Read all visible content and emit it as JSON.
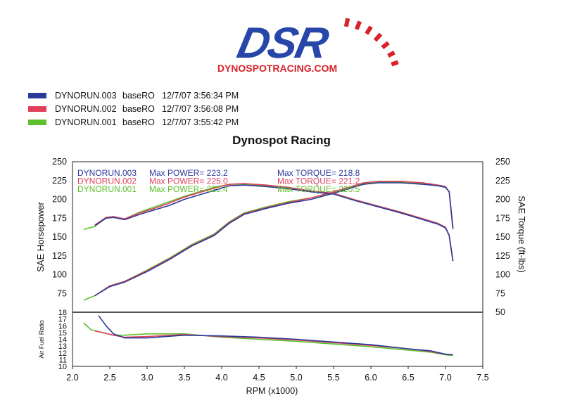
{
  "header": {
    "logo_text": "DSR",
    "logo_url_text": "DYNOSPOTRACING.COM"
  },
  "legend": [
    {
      "run": "DYNORUN.003",
      "note": "baseRO",
      "timestamp": "12/7/07 3:56:34 PM",
      "color": "#2b3a9a"
    },
    {
      "run": "DYNORUN.002",
      "note": "baseRO",
      "timestamp": "12/7/07 3:56:08 PM",
      "color": "#e0405a"
    },
    {
      "run": "DYNORUN.001",
      "note": "baseRO",
      "timestamp": "12/7/07 3:55:42 PM",
      "color": "#5cc02a"
    }
  ],
  "chart_data": [
    {
      "type": "line",
      "title": "Dynospot Racing",
      "xlabel": "",
      "ylabel": "SAE Horsepower",
      "ylabel_right": "SAE Torque (ft-lbs)",
      "ylim": [
        50,
        250
      ],
      "ylim_right": [
        50,
        250
      ],
      "xlim": [
        2.0,
        7.5
      ],
      "y_ticks": [
        75,
        100,
        125,
        150,
        175,
        200,
        225,
        250
      ],
      "y_ticks_right": [
        50,
        75,
        100,
        125,
        150,
        175,
        200,
        225,
        250
      ],
      "annotations": [
        {
          "run": "DYNORUN.003",
          "max_power": "Max POWER= 223.2",
          "max_torque": "Max TORQUE= 218.8",
          "color": "#2b3a9a"
        },
        {
          "run": "DYNORUN.002",
          "max_power": "Max POWER= 225.0",
          "max_torque": "Max TORQUE= 221.2",
          "color": "#e0405a"
        },
        {
          "run": "DYNORUN.001",
          "max_power": "Max POWER= 223.4",
          "max_torque": "Max TORQUE= 220.5",
          "color": "#5cc02a"
        }
      ],
      "series": [
        {
          "name": "DYNORUN.003",
          "measure": "power",
          "color": "#2b3a9a",
          "x": [
            2.3,
            2.5,
            2.7,
            3.0,
            3.3,
            3.6,
            3.9,
            4.1,
            4.3,
            4.6,
            4.9,
            5.2,
            5.5,
            5.7,
            5.9,
            6.1,
            6.4,
            6.7,
            6.9,
            7.0,
            7.05,
            7.1
          ],
          "y": [
            72,
            84,
            90,
            104,
            120,
            138,
            152,
            168,
            180,
            188,
            195,
            200,
            208,
            214,
            220,
            222,
            222,
            220,
            218,
            216,
            210,
            162
          ]
        },
        {
          "name": "DYNORUN.002",
          "measure": "power",
          "color": "#e0405a",
          "x": [
            2.3,
            2.5,
            2.7,
            3.0,
            3.3,
            3.6,
            3.9,
            4.1,
            4.3,
            4.6,
            4.9,
            5.2,
            5.5,
            5.7,
            5.9,
            6.1,
            6.4,
            6.7,
            6.9,
            7.0,
            7.05,
            7.1
          ],
          "y": [
            72,
            85,
            91,
            105,
            121,
            139,
            153,
            169,
            181,
            189,
            196,
            202,
            210,
            216,
            222,
            224,
            224,
            222,
            219,
            217,
            210,
            160
          ]
        },
        {
          "name": "DYNORUN.001",
          "measure": "power",
          "color": "#5cc02a",
          "x": [
            2.15,
            2.3,
            2.5,
            2.7,
            3.0,
            3.3,
            3.6,
            3.9,
            4.1,
            4.3,
            4.6,
            4.9,
            5.2,
            5.5,
            5.7,
            5.9,
            6.1,
            6.4,
            6.7,
            6.9,
            7.0,
            7.05,
            7.1
          ],
          "y": [
            66,
            72,
            85,
            91,
            106,
            122,
            140,
            154,
            170,
            182,
            190,
            197,
            202,
            209,
            215,
            221,
            223,
            223,
            221,
            218,
            216,
            210,
            162
          ]
        },
        {
          "name": "DYNORUN.003",
          "measure": "torque",
          "color": "#2b3a9a",
          "x": [
            2.3,
            2.45,
            2.55,
            2.7,
            2.9,
            3.1,
            3.3,
            3.5,
            3.7,
            3.9,
            4.1,
            4.3,
            4.6,
            4.9,
            5.2,
            5.5,
            5.8,
            6.1,
            6.4,
            6.7,
            6.9,
            7.0,
            7.05,
            7.1
          ],
          "y": [
            165,
            175,
            176,
            173,
            180,
            186,
            192,
            200,
            206,
            212,
            218,
            219,
            217,
            214,
            210,
            207,
            198,
            190,
            182,
            173,
            167,
            162,
            152,
            118
          ]
        },
        {
          "name": "DYNORUN.002",
          "measure": "torque",
          "color": "#e0405a",
          "x": [
            2.3,
            2.45,
            2.55,
            2.7,
            2.9,
            3.1,
            3.3,
            3.5,
            3.7,
            3.9,
            4.1,
            4.3,
            4.6,
            4.9,
            5.2,
            5.5,
            5.8,
            6.1,
            6.4,
            6.7,
            6.9,
            7.0,
            7.05,
            7.1
          ],
          "y": [
            166,
            176,
            177,
            174,
            182,
            188,
            195,
            203,
            209,
            215,
            220,
            221,
            219,
            216,
            211,
            208,
            199,
            191,
            183,
            174,
            168,
            163,
            152,
            118
          ]
        },
        {
          "name": "DYNORUN.001",
          "measure": "torque",
          "color": "#5cc02a",
          "x": [
            2.15,
            2.3,
            2.45,
            2.55,
            2.7,
            2.9,
            3.1,
            3.3,
            3.5,
            3.7,
            3.9,
            4.1,
            4.3,
            4.6,
            4.9,
            5.2,
            5.5,
            5.8,
            6.1,
            6.4,
            6.7,
            6.9,
            7.0,
            7.05,
            7.1
          ],
          "y": [
            160,
            164,
            176,
            177,
            174,
            183,
            190,
            197,
            204,
            210,
            216,
            220,
            220,
            218,
            215,
            211,
            208,
            199,
            191,
            183,
            174,
            168,
            163,
            152,
            118
          ]
        }
      ]
    },
    {
      "type": "line",
      "title": "",
      "xlabel": "RPM (x1000)",
      "ylabel": "Air Fuel Ratio",
      "ylim": [
        10,
        18
      ],
      "xlim": [
        2.0,
        7.5
      ],
      "y_ticks": [
        10,
        11,
        12,
        13,
        14,
        15,
        16,
        17,
        18
      ],
      "x_ticks": [
        "2.0",
        "2.5",
        "3.0",
        "3.5",
        "4.0",
        "4.5",
        "5.0",
        "5.5",
        "6.0",
        "6.5",
        "7.0",
        "7.5"
      ],
      "series": [
        {
          "name": "DYNORUN.003",
          "color": "#2b3a9a",
          "x": [
            2.35,
            2.45,
            2.55,
            2.7,
            3.0,
            3.5,
            4.0,
            4.5,
            5.0,
            5.5,
            6.0,
            6.5,
            6.8,
            7.0,
            7.1
          ],
          "y": [
            17.5,
            16.0,
            14.8,
            14.2,
            14.2,
            14.6,
            14.5,
            14.3,
            14.0,
            13.6,
            13.2,
            12.6,
            12.3,
            11.8,
            11.7
          ]
        },
        {
          "name": "DYNORUN.002",
          "color": "#e0405a",
          "x": [
            2.3,
            2.4,
            2.55,
            2.7,
            3.0,
            3.5,
            4.0,
            4.5,
            5.0,
            5.5,
            6.0,
            6.5,
            6.8,
            7.0,
            7.1
          ],
          "y": [
            15.2,
            15.0,
            14.6,
            14.3,
            14.4,
            14.7,
            14.4,
            14.2,
            13.9,
            13.5,
            13.1,
            12.6,
            12.2,
            11.8,
            11.7
          ]
        },
        {
          "name": "DYNORUN.001",
          "color": "#5cc02a",
          "x": [
            2.15,
            2.25,
            2.4,
            2.55,
            2.7,
            3.0,
            3.5,
            4.0,
            4.5,
            5.0,
            5.5,
            6.0,
            6.5,
            6.8,
            7.0,
            7.1
          ],
          "y": [
            16.4,
            15.4,
            15.0,
            14.6,
            14.6,
            14.8,
            14.8,
            14.3,
            14.0,
            13.7,
            13.3,
            12.9,
            12.4,
            12.1,
            11.7,
            11.6
          ]
        }
      ]
    }
  ]
}
